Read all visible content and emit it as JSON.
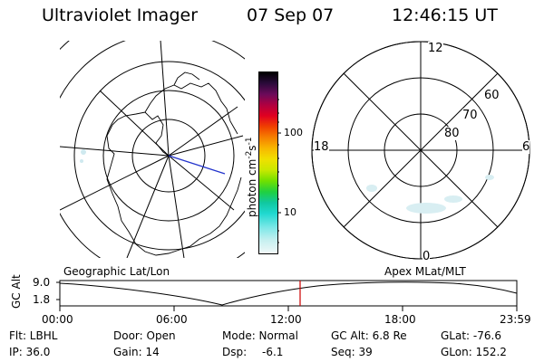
{
  "header": {
    "instrument": "Ultraviolet Imager",
    "date": "07 Sep 07",
    "time": "12:46:15 UT"
  },
  "left_map": {
    "label": "Geographic Lat/Lon"
  },
  "right_map": {
    "label": "Apex MLat/MLT",
    "mlt_labels": [
      "12",
      "18",
      "6",
      "0"
    ],
    "lat_labels": [
      "60",
      "70",
      "80"
    ]
  },
  "colorbar": {
    "unit": "photon cm",
    "unit_sup1": "-2",
    "unit_mid": "s",
    "unit_sup2": "-1",
    "tick_labels": [
      "100",
      "10"
    ]
  },
  "altitude_plot": {
    "axis_label": "GC Alt",
    "y_ticks": [
      "9.0",
      "1.8"
    ],
    "x_ticks": [
      "00:00",
      "06:00",
      "12:00",
      "18:00",
      "23:59"
    ],
    "current_time_color": "#cc0000"
  },
  "status": {
    "filter": "Flt: LBHL",
    "ip": "IP: 36.0",
    "door": "Door: Open",
    "gain": "Gain: 14",
    "mode": "Mode: Normal",
    "dsp_label": "Dsp:",
    "dsp_value": "-6.1",
    "gc_alt": "GC Alt: 6.8 Re",
    "seq": "Seq: 39",
    "glat": "GLat: -76.6",
    "glon": "GLon: 152.2"
  }
}
